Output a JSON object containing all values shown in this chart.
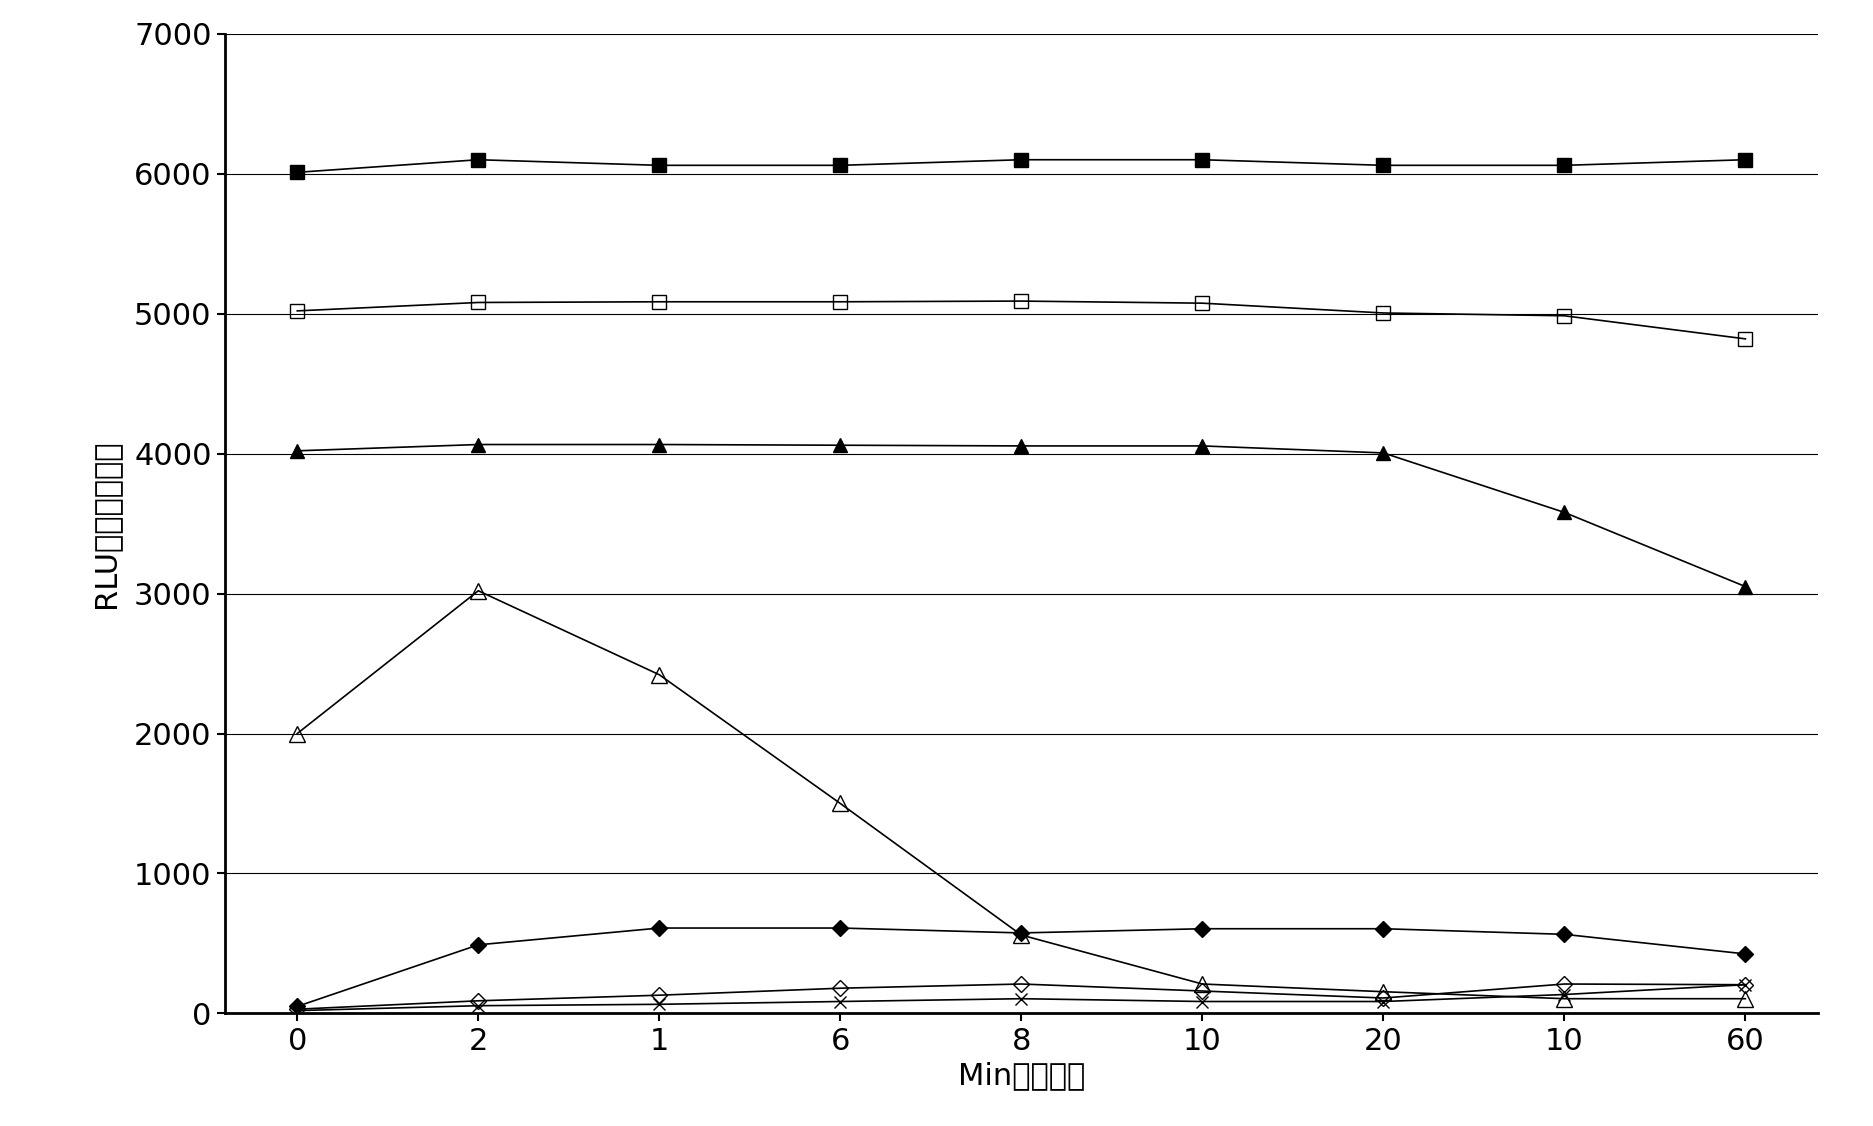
{
  "x_labels": [
    "0",
    "2",
    "1",
    "6",
    "8",
    "10",
    "20",
    "10",
    "60"
  ],
  "x_positions": [
    0,
    1,
    2,
    3,
    4,
    5,
    6,
    7,
    8
  ],
  "series": [
    {
      "marker": "s",
      "filled": true,
      "markersize": 10,
      "linewidth": 1.2,
      "values": [
        6010,
        6100,
        6060,
        6060,
        6100,
        6100,
        6060,
        6060,
        6100
      ]
    },
    {
      "marker": "s",
      "filled": false,
      "markersize": 10,
      "linewidth": 1.2,
      "values": [
        5020,
        5080,
        5085,
        5085,
        5090,
        5075,
        5005,
        4985,
        4820
      ]
    },
    {
      "marker": "^",
      "filled": true,
      "markersize": 10,
      "linewidth": 1.2,
      "values": [
        4020,
        4065,
        4065,
        4060,
        4055,
        4055,
        4005,
        3580,
        3050
      ]
    },
    {
      "marker": "^",
      "filled": false,
      "markersize": 12,
      "linewidth": 1.2,
      "values": [
        2000,
        3020,
        2420,
        1500,
        560,
        210,
        155,
        105,
        105
      ]
    },
    {
      "marker": "D",
      "filled": true,
      "markersize": 8,
      "linewidth": 1.2,
      "values": [
        50,
        490,
        610,
        610,
        575,
        605,
        605,
        565,
        425
      ]
    },
    {
      "marker": "D",
      "filled": false,
      "markersize": 8,
      "linewidth": 1.2,
      "values": [
        30,
        90,
        130,
        180,
        210,
        160,
        110,
        210,
        205
      ]
    },
    {
      "marker": "x",
      "filled": true,
      "markersize": 8,
      "linewidth": 1.2,
      "values": [
        20,
        55,
        65,
        85,
        105,
        85,
        85,
        135,
        205
      ]
    }
  ],
  "ylabel": "RLU（光量子数）",
  "xlabel": "Min（分钟）",
  "ylim": [
    0,
    7000
  ],
  "yticks": [
    0,
    1000,
    2000,
    3000,
    4000,
    5000,
    6000,
    7000
  ],
  "color": "#000000",
  "tick_fontsize": 22,
  "label_fontsize": 22,
  "figwidth": 18.74,
  "figheight": 11.26,
  "dpi": 100
}
